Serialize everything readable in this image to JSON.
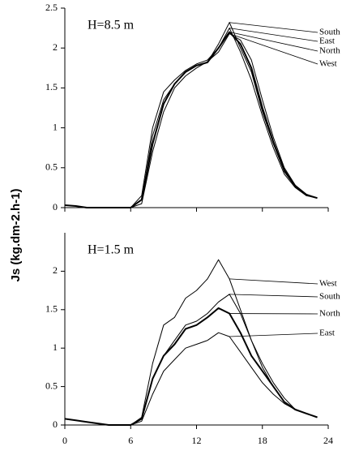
{
  "chart_data": [
    {
      "type": "line",
      "title": "H=8.5 m",
      "ylabel": "Js (kg.dm-2.h-1)",
      "x": [
        0,
        1,
        2,
        3,
        4,
        5,
        6,
        7,
        8,
        9,
        10,
        11,
        12,
        13,
        14,
        15,
        16,
        17,
        18,
        19,
        20,
        21,
        22,
        23
      ],
      "xlim": [
        0,
        24
      ],
      "ylim": [
        0,
        2.5
      ],
      "yticks": [
        0,
        0.5,
        1,
        1.5,
        2,
        2.5
      ],
      "series": [
        {
          "name": "South",
          "color": "#000",
          "width": 1,
          "values": [
            0.03,
            0.02,
            0,
            0,
            0,
            0,
            0,
            0.1,
            0.9,
            1.35,
            1.55,
            1.7,
            1.78,
            1.82,
            2.05,
            2.32,
            2.0,
            1.7,
            1.2,
            0.8,
            0.45,
            0.26,
            0.16,
            0.12
          ]
        },
        {
          "name": "East",
          "color": "#000",
          "width": 1,
          "values": [
            0.03,
            0.02,
            0,
            0,
            0,
            0,
            0,
            0.15,
            1.0,
            1.45,
            1.6,
            1.72,
            1.8,
            1.85,
            2.0,
            2.25,
            1.95,
            1.6,
            1.15,
            0.75,
            0.42,
            0.25,
            0.15,
            0.12
          ]
        },
        {
          "name": "North",
          "color": "#000",
          "width": 2,
          "values": [
            0.03,
            0.02,
            0,
            0,
            0,
            0,
            0,
            0.1,
            0.8,
            1.3,
            1.55,
            1.7,
            1.78,
            1.82,
            2.0,
            2.2,
            2.05,
            1.75,
            1.25,
            0.82,
            0.47,
            0.27,
            0.16,
            0.12
          ]
        },
        {
          "name": "West",
          "color": "#000",
          "width": 1,
          "values": [
            0.03,
            0.02,
            0,
            0,
            0,
            0,
            0,
            0.05,
            0.7,
            1.2,
            1.5,
            1.65,
            1.75,
            1.83,
            1.95,
            2.18,
            2.1,
            1.85,
            1.35,
            0.88,
            0.5,
            0.28,
            0.17,
            0.12
          ]
        }
      ]
    },
    {
      "type": "line",
      "title": "H=1.5 m",
      "x": [
        0,
        1,
        2,
        3,
        4,
        5,
        6,
        7,
        8,
        9,
        10,
        11,
        12,
        13,
        14,
        15,
        16,
        17,
        18,
        19,
        20,
        21,
        22,
        23
      ],
      "xlim": [
        0,
        24
      ],
      "ylim": [
        0,
        2.5
      ],
      "yticks": [
        0,
        0.5,
        1,
        1.5,
        2
      ],
      "xticks": [
        0,
        6,
        12,
        18,
        24
      ],
      "series": [
        {
          "name": "West",
          "color": "#000",
          "width": 1,
          "values": [
            0.08,
            0.06,
            0.04,
            0.02,
            0,
            0,
            0,
            0.1,
            0.8,
            1.3,
            1.4,
            1.65,
            1.75,
            1.9,
            2.15,
            1.9,
            1.5,
            1.1,
            0.75,
            0.5,
            0.3,
            0.2,
            0.15,
            0.1
          ]
        },
        {
          "name": "South",
          "color": "#000",
          "width": 1,
          "values": [
            0.08,
            0.06,
            0.04,
            0.02,
            0,
            0,
            0,
            0.08,
            0.6,
            0.9,
            1.1,
            1.3,
            1.35,
            1.45,
            1.6,
            1.7,
            1.45,
            1.1,
            0.8,
            0.55,
            0.35,
            0.2,
            0.15,
            0.1
          ]
        },
        {
          "name": "North",
          "color": "#000",
          "width": 2,
          "values": [
            0.08,
            0.06,
            0.04,
            0.02,
            0,
            0,
            0,
            0.08,
            0.6,
            0.9,
            1.05,
            1.25,
            1.3,
            1.4,
            1.52,
            1.45,
            1.2,
            0.9,
            0.7,
            0.5,
            0.3,
            0.2,
            0.15,
            0.1
          ]
        },
        {
          "name": "East",
          "color": "#000",
          "width": 1,
          "values": [
            0.08,
            0.06,
            0.04,
            0.02,
            0,
            0,
            0,
            0.05,
            0.4,
            0.7,
            0.85,
            1.0,
            1.05,
            1.1,
            1.2,
            1.15,
            0.95,
            0.75,
            0.55,
            0.4,
            0.28,
            0.2,
            0.15,
            0.1
          ]
        }
      ]
    }
  ]
}
